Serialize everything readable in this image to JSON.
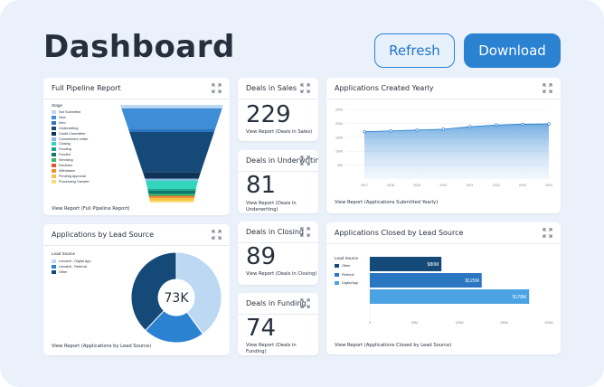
{
  "header": {
    "title": "Dashboard",
    "refresh_label": "Refresh",
    "download_label": "Download"
  },
  "pipeline": {
    "title": "Full Pipeline Report",
    "legend_title": "Stage",
    "stages": [
      {
        "name": "Not Submitted",
        "color": "#bcd8f3"
      },
      {
        "name": "New",
        "color": "#3d8ed6"
      },
      {
        "name": "Intro",
        "color": "#2a76c2"
      },
      {
        "name": "Underwriting",
        "color": "#154a78"
      },
      {
        "name": "Credit Committee",
        "color": "#0f3458"
      },
      {
        "name": "Commitment Letter",
        "color": "#8ab9e8"
      },
      {
        "name": "Closing",
        "color": "#33d6bd"
      },
      {
        "name": "Funding",
        "color": "#1ea58c"
      },
      {
        "name": "Funded",
        "color": "#0e7a6a"
      },
      {
        "name": "Servicing",
        "color": "#2fbb6a"
      },
      {
        "name": "Declined",
        "color": "#e6542a"
      },
      {
        "name": "Withdrawn",
        "color": "#f28e2b"
      },
      {
        "name": "Pending Approval",
        "color": "#f5c242"
      },
      {
        "name": "Processing Transfer",
        "color": "#f7e07a"
      }
    ],
    "link": "View Report (Full Pipeline Report)"
  },
  "deals_sales": {
    "title": "Deals in Sales",
    "value": "229",
    "link": "View Report (Deals in Sales)"
  },
  "deals_underwriting": {
    "title": "Deals in Underwriting",
    "value": "81",
    "link": "View Report (Deals in Underwriting)"
  },
  "deals_closing": {
    "title": "Deals in Closing",
    "value": "89",
    "link": "View Report (Deals in Closing)"
  },
  "deals_funding": {
    "title": "Deals in Funding",
    "value": "74",
    "link": "View Report (Deals in Funding)"
  },
  "lead_source": {
    "title": "Applications by Lead Source",
    "legend_title": "Lead Source",
    "items": [
      {
        "name": "Lender6 - Digital App",
        "color": "#bcd8f3"
      },
      {
        "name": "Lender6 - Referral",
        "color": "#2a82d1"
      },
      {
        "name": "Other",
        "color": "#154a78"
      }
    ],
    "center_label": "73K",
    "link": "View Report (Applications by Lead Source)"
  },
  "closed_by_source": {
    "title": "Applications Closed by Lead Source",
    "link": "View Report (Applications Closed by Lead Source)"
  },
  "yearly": {
    "title": "Applications Created Yearly",
    "link": "View Report (Applications Submitted Yearly)"
  },
  "colors": {
    "accent": "#2a82d1",
    "dark": "#154a78",
    "light": "#bcd8f3",
    "mid": "#4ba3e4"
  },
  "chart_data": [
    {
      "type": "area",
      "title": "Applications Created Yearly",
      "x": [
        "2017",
        "2018",
        "2019",
        "2020",
        "2021",
        "2022",
        "2023",
        "2024"
      ],
      "values": [
        1700,
        1730,
        1760,
        1790,
        1880,
        1940,
        1970,
        1980
      ],
      "ytick_labels": [
        "2500",
        "2000",
        "1500",
        "1000",
        "500"
      ],
      "ylim": [
        0,
        2600
      ]
    },
    {
      "type": "bar",
      "orientation": "horizontal",
      "title": "Applications Closed by Lead Source",
      "legend_title": "Lead Source",
      "categories": [
        "Other",
        "Referral",
        "Digital App"
      ],
      "values": [
        80,
        125,
        178
      ],
      "value_labels": [
        "$80M",
        "$125M",
        "$178M"
      ],
      "colors": [
        "#154a78",
        "#2a76c2",
        "#4ba3e4"
      ],
      "xtick_labels": [
        "0",
        "50M",
        "100M",
        "150M",
        "200M"
      ],
      "xlim": [
        0,
        200
      ]
    },
    {
      "type": "pie",
      "title": "Applications by Lead Source",
      "categories": [
        "Lender6 - Digital App",
        "Lender6 - Referral",
        "Other"
      ],
      "values": [
        40,
        22,
        38
      ],
      "center_label": "73K"
    },
    {
      "type": "funnel",
      "title": "Full Pipeline Report",
      "categories": [
        "Not Submitted",
        "New",
        "Intro",
        "Underwriting",
        "Credit Committee",
        "Commitment Letter",
        "Closing",
        "Funding",
        "Funded",
        "Servicing",
        "Declined",
        "Withdrawn",
        "Pending Approval",
        "Processing Transfer"
      ],
      "values": [
        4,
        24,
        4,
        47,
        8,
        2,
        10,
        2,
        4,
        2,
        1,
        2,
        3,
        2
      ]
    }
  ]
}
